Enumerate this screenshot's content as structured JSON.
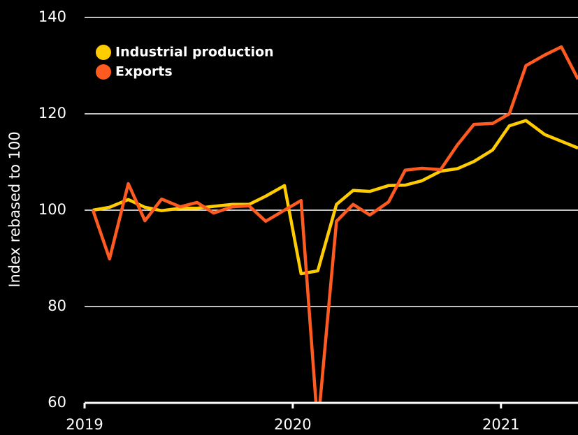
{
  "chart_data": {
    "type": "line",
    "y_label": "Index rebased to 100",
    "x": [
      2019.04,
      2019.12,
      2019.21,
      2019.29,
      2019.37,
      2019.46,
      2019.54,
      2019.62,
      2019.71,
      2019.79,
      2019.87,
      2019.96,
      2020.04,
      2020.12,
      2020.21,
      2020.29,
      2020.37,
      2020.46,
      2020.54,
      2020.62,
      2020.71,
      2020.79,
      2020.87,
      2020.96,
      2021.04,
      2021.12,
      2021.21,
      2021.29,
      2021.37
    ],
    "series": [
      {
        "name": "Industrial production",
        "color": "#ffcc00",
        "values": [
          100,
          100.6,
          102.2,
          100.6,
          99.9,
          100.4,
          100.4,
          100.8,
          101.2,
          101.2,
          102.9,
          105.1,
          86.8,
          87.4,
          101.2,
          104.1,
          103.9,
          105.1,
          105.2,
          106.1,
          108.1,
          108.6,
          110.1,
          112.5,
          117.5,
          118.6,
          115.7,
          114.3,
          112.9
        ]
      },
      {
        "name": "Exports",
        "color": "#ff5a1f",
        "values": [
          100,
          89.9,
          105.5,
          97.8,
          102.3,
          100.7,
          101.6,
          99.4,
          100.7,
          100.9,
          97.7,
          100,
          102,
          55,
          97.7,
          101.2,
          99,
          101.7,
          108.3,
          108.7,
          108.4,
          113.5,
          117.8,
          118,
          120,
          130,
          132.2,
          133.9,
          127.2
        ]
      }
    ],
    "xlim": [
      2019,
      2021.37
    ],
    "xticks": [
      2019,
      2020,
      2021
    ],
    "ylim": [
      60,
      140
    ],
    "yticks": [
      60,
      80,
      100,
      120,
      140
    ],
    "grid": true,
    "legend": "upper left"
  }
}
